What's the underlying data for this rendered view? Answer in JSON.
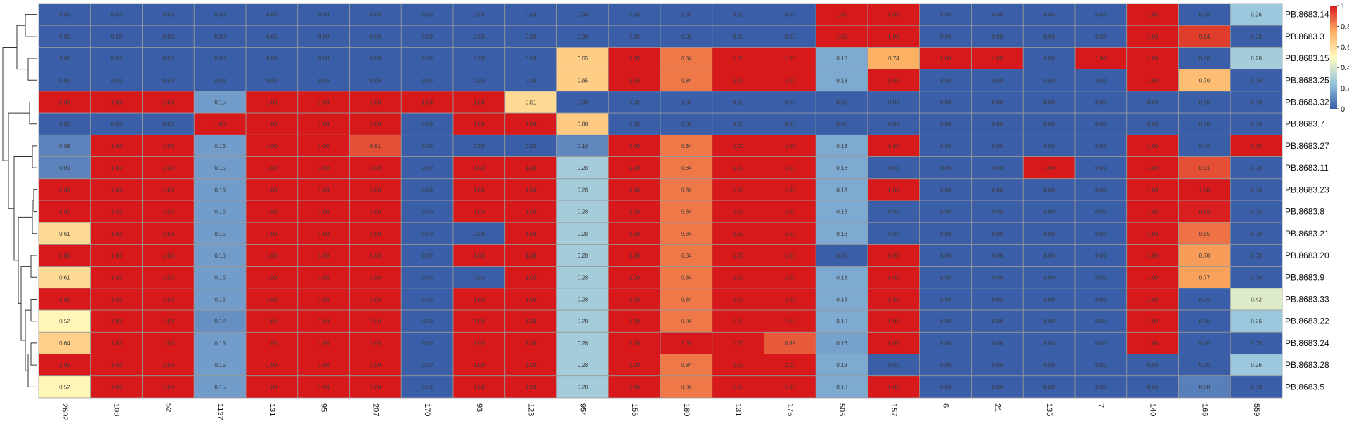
{
  "chart_data": {
    "type": "heatmap",
    "title": "",
    "xlabel": "",
    "ylabel": "",
    "rows": [
      "PB.8683.14",
      "PB.8683.3",
      "PB.8683.15",
      "PB.8683.25",
      "PB.8683.32",
      "PB.8683.7",
      "PB.8683.27",
      "PB.8683.11",
      "PB.8683.23",
      "PB.8683.8",
      "PB.8683.21",
      "PB.8683.20",
      "PB.8683.9",
      "PB.8683.33",
      "PB.8683.22",
      "PB.8683.24",
      "PB.8683.28",
      "PB.8683.5"
    ],
    "columns": [
      "2692",
      "108",
      "52",
      "1137",
      "131",
      "95",
      "207",
      "170",
      "93",
      "123",
      "954",
      "156",
      "180",
      "131",
      "175",
      "505",
      "157",
      "6",
      "21",
      "135",
      "7",
      "140",
      "166",
      "559"
    ],
    "values": [
      [
        0,
        0,
        0,
        0,
        0,
        0,
        0,
        0,
        0,
        0,
        0,
        0,
        0,
        0,
        0,
        1,
        1,
        0,
        0,
        0,
        0,
        1,
        0,
        0.26
      ],
      [
        0,
        0,
        0,
        0,
        0,
        0,
        0,
        0,
        0,
        0,
        0,
        0,
        0,
        0,
        0,
        1,
        1,
        0,
        0,
        0,
        0,
        1,
        0.94,
        0
      ],
      [
        0,
        0,
        0,
        0,
        0,
        0,
        0,
        0,
        0,
        0,
        0.65,
        1,
        0.84,
        1,
        1,
        0.18,
        0.74,
        1,
        1,
        0,
        1,
        1,
        0,
        0.28
      ],
      [
        0,
        0,
        0,
        0,
        0,
        0,
        0,
        0,
        0,
        0,
        0.65,
        1,
        0.84,
        1,
        1,
        0.18,
        1,
        0,
        0,
        0,
        0,
        1,
        0.7,
        0
      ],
      [
        1,
        1,
        1,
        0.15,
        1,
        1,
        1,
        1,
        1,
        0.61,
        0,
        0,
        0,
        0,
        0,
        0,
        0,
        0,
        0,
        0,
        0,
        0,
        0,
        0
      ],
      [
        0,
        0,
        0,
        1,
        1,
        1,
        1,
        0,
        1,
        1,
        0.66,
        0,
        0,
        0,
        0,
        0,
        0,
        0,
        0,
        0,
        0,
        0,
        0,
        0
      ],
      [
        0.09,
        1,
        1,
        0.15,
        1,
        1,
        0.91,
        0,
        0,
        0,
        0.1,
        1,
        0.84,
        1,
        1,
        0.18,
        1,
        0,
        0,
        0,
        0,
        1,
        0,
        1
      ],
      [
        0.09,
        1,
        1,
        0.15,
        1,
        1,
        1,
        0,
        1,
        1,
        0.28,
        1,
        0.84,
        1,
        1,
        0.18,
        0,
        0,
        0,
        1,
        0,
        1,
        0.91,
        0
      ],
      [
        1,
        1,
        1,
        0.15,
        1,
        1,
        1,
        0,
        1,
        1,
        0.28,
        1,
        0.84,
        1,
        1,
        0.18,
        1,
        0,
        0,
        0,
        0,
        1,
        1,
        0
      ],
      [
        1,
        1,
        1,
        0.15,
        1,
        1,
        1,
        0,
        1,
        1,
        0.28,
        1,
        0.84,
        1,
        1,
        0.18,
        0,
        0,
        0,
        0,
        0,
        1,
        0.99,
        0
      ],
      [
        0.61,
        1,
        1,
        0.15,
        1,
        1,
        1,
        0,
        0,
        1,
        0.28,
        1,
        0.84,
        1,
        1,
        0.18,
        0,
        0,
        0,
        0,
        0,
        1,
        0.85,
        0
      ],
      [
        1,
        1,
        1,
        0.15,
        1,
        1,
        1,
        0,
        1,
        1,
        0.28,
        1,
        0.84,
        1,
        1,
        0,
        1,
        0,
        0,
        0,
        0,
        1,
        0.78,
        0
      ],
      [
        0.61,
        1,
        1,
        0.15,
        1,
        1,
        1,
        0,
        0,
        1,
        0.28,
        1,
        0.84,
        1,
        1,
        0.18,
        1,
        0,
        0,
        0,
        0,
        1,
        0.77,
        0
      ],
      [
        1,
        1,
        1,
        0.15,
        1,
        1,
        1,
        0,
        1,
        1,
        0.28,
        1,
        0.84,
        1,
        1,
        0.18,
        1,
        0,
        0,
        0,
        0,
        1,
        0,
        0.42
      ],
      [
        0.52,
        1,
        1,
        0.12,
        1,
        1,
        1,
        0,
        1,
        1,
        0.28,
        1,
        0.84,
        1,
        1,
        0.18,
        1,
        0,
        0,
        0,
        0,
        1,
        0,
        0.26
      ],
      [
        0.64,
        1,
        1,
        0.15,
        1,
        1,
        1,
        0,
        1,
        1,
        0.28,
        1,
        1,
        1,
        0.89,
        0.16,
        1,
        0,
        0,
        0,
        0,
        1,
        0,
        0
      ],
      [
        1,
        1,
        1,
        0.15,
        1,
        1,
        1,
        0,
        1,
        1,
        0.28,
        1,
        0.84,
        1,
        1,
        0.18,
        0,
        0,
        0,
        0,
        0,
        0,
        0,
        0.26
      ],
      [
        0.52,
        1,
        1,
        0.15,
        1,
        1,
        1,
        0,
        1,
        1,
        0.28,
        1,
        0.84,
        1,
        1,
        0.18,
        1,
        0,
        0,
        0,
        0,
        0,
        0.08,
        0
      ]
    ],
    "colorbar": {
      "min": 0,
      "max": 1,
      "ticks": [
        "0",
        "0.2",
        "0.4",
        "0.6",
        "0.8",
        "1"
      ],
      "stops": [
        "#3a5ea8",
        "#98c6df",
        "#fffcbe",
        "#fdae61",
        "#d7191c"
      ],
      "placement": "top-right"
    },
    "dendrogram": "rows",
    "grid": true
  }
}
